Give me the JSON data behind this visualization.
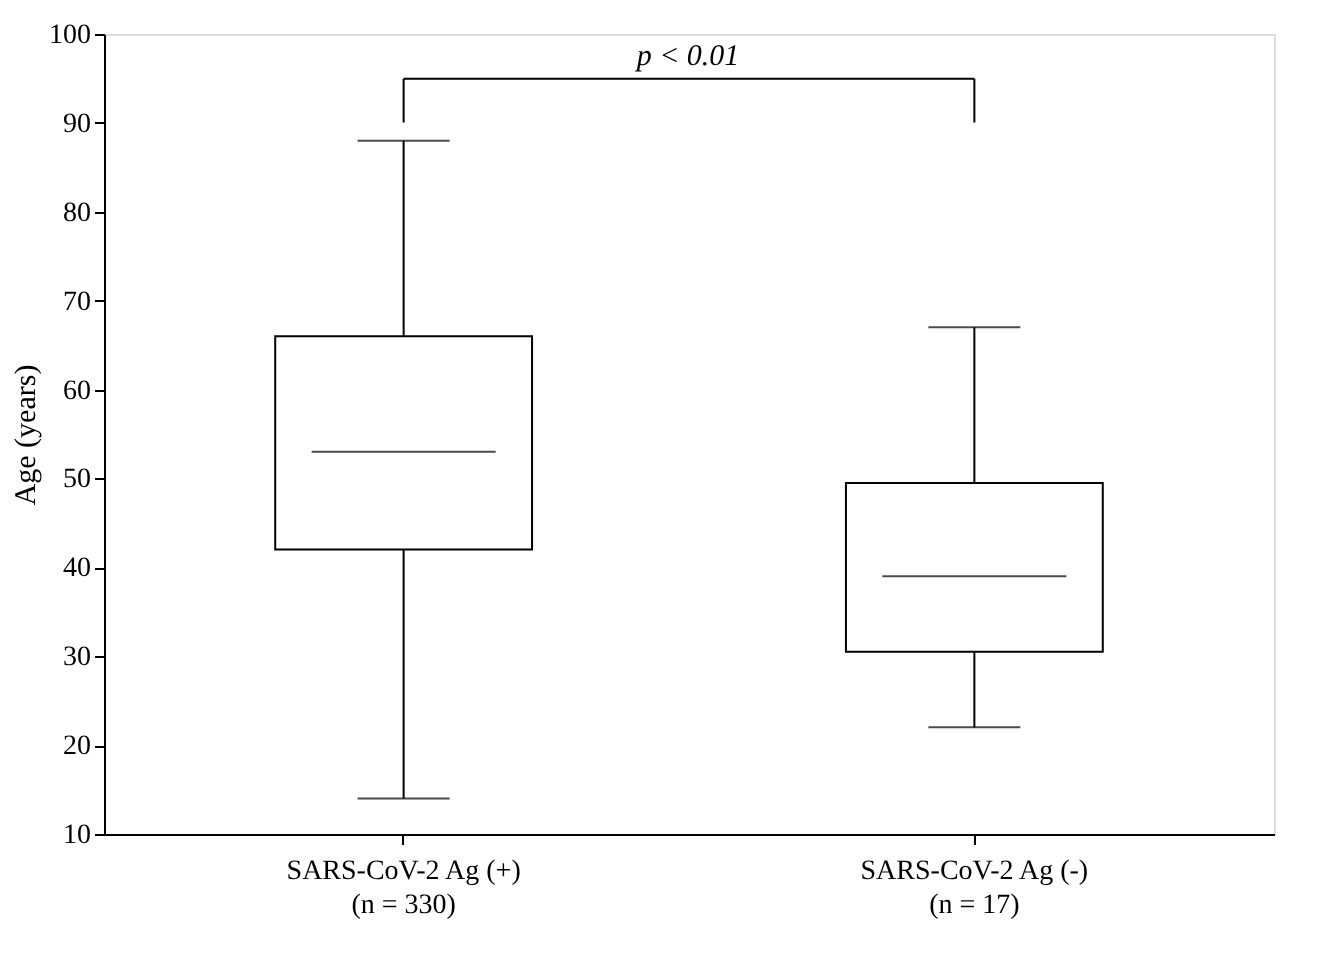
{
  "chart_data": {
    "type": "box",
    "ylabel": "Age (years)",
    "categories": [
      "SARS-CoV-2 Ag (+)\n(n = 330)",
      "SARS-CoV-2 Ag (-)\n(n = 17)"
    ],
    "boxes": [
      {
        "low": 14,
        "q1": 42,
        "median": 53,
        "q3": 66,
        "high": 88
      },
      {
        "low": 22,
        "q1": 30.5,
        "median": 39,
        "q3": 49.5,
        "high": 67
      }
    ],
    "ylim": [
      10,
      100
    ],
    "yticks": [
      10,
      20,
      30,
      40,
      50,
      60,
      70,
      80,
      90,
      100
    ],
    "annotations": [
      "p < 0.01"
    ],
    "grid": false
  }
}
